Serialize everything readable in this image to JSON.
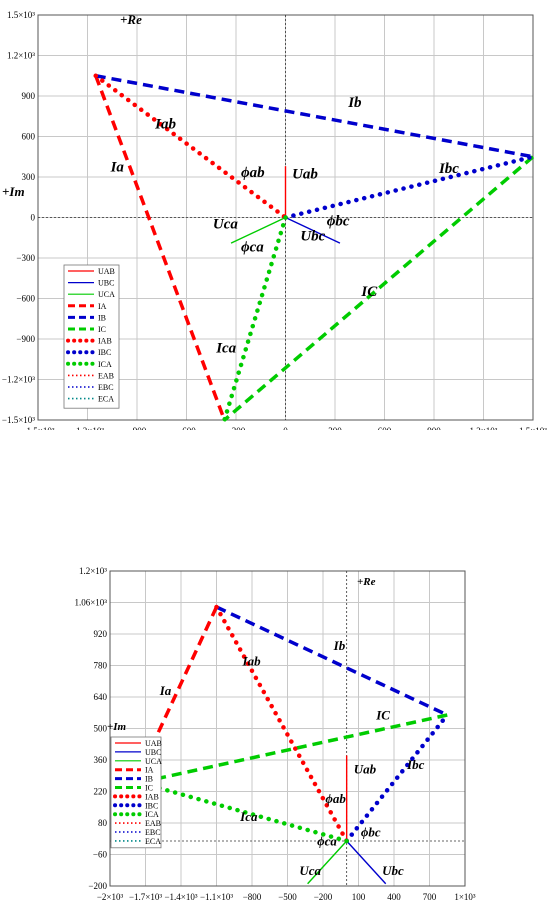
{
  "chart_data": [
    {
      "type": "line",
      "title": "",
      "xlim": [
        -1500,
        1500
      ],
      "ylim": [
        -1500,
        1500
      ],
      "x_ticks": [
        "−1.5×10³",
        "−1.2×10³",
        "−900",
        "−600",
        "−300",
        "0",
        "300",
        "600",
        "900",
        "1.2×10³",
        "1.5×10³"
      ],
      "y_ticks": [
        "1.5×10³",
        "1.2×10³",
        "900",
        "600",
        "300",
        "0",
        "−300",
        "−600",
        "−900",
        "−1.2×10³",
        "−1.5×10³"
      ],
      "axis_labels": {
        "re": "+Re",
        "im": "+Im"
      },
      "grid": true,
      "legend": {
        "placement": "bottom-left",
        "entries": [
          "UAB",
          "UBC",
          "UCA",
          "IA",
          "IB",
          "IC",
          "IAB",
          "IBC",
          "ICA",
          "EAB",
          "EBC",
          "ECA"
        ]
      },
      "series": [
        {
          "name": "UAB",
          "style": "solid-thin",
          "color": "#ff0000",
          "points": [
            [
              0,
              0
            ],
            [
              0,
              380
            ]
          ]
        },
        {
          "name": "UBC",
          "style": "solid-thin",
          "color": "#0000cc",
          "points": [
            [
              0,
              0
            ],
            [
              330,
              -190
            ]
          ]
        },
        {
          "name": "UCA",
          "style": "solid-thin",
          "color": "#00cc00",
          "points": [
            [
              0,
              0
            ],
            [
              -330,
              -190
            ]
          ]
        },
        {
          "name": "IA",
          "style": "dashed",
          "color": "#ff0000",
          "points": [
            [
              -1150,
              1050
            ],
            [
              -370,
              -1500
            ]
          ]
        },
        {
          "name": "IB",
          "style": "dashed",
          "color": "#0000cc",
          "points": [
            [
              -1150,
              1050
            ],
            [
              1500,
              450
            ]
          ]
        },
        {
          "name": "IC",
          "style": "dashed",
          "color": "#00cc00",
          "points": [
            [
              1500,
              450
            ],
            [
              -370,
              -1500
            ]
          ]
        },
        {
          "name": "IAB",
          "style": "dotted",
          "color": "#ff0000",
          "points": [
            [
              -1150,
              1050
            ],
            [
              0,
              0
            ]
          ]
        },
        {
          "name": "IBC",
          "style": "dotted",
          "color": "#0000cc",
          "points": [
            [
              0,
              0
            ],
            [
              1500,
              450
            ]
          ]
        },
        {
          "name": "ICA",
          "style": "dotted",
          "color": "#00cc00",
          "points": [
            [
              0,
              0
            ],
            [
              -370,
              -1500
            ]
          ]
        }
      ],
      "annotations": [
        {
          "text": "Ib",
          "x": 380,
          "y": 820
        },
        {
          "text": "Ia",
          "x": -1060,
          "y": 340
        },
        {
          "text": "Iab",
          "x": -790,
          "y": 660
        },
        {
          "text": "Ibc",
          "x": 930,
          "y": 330
        },
        {
          "text": "IC",
          "x": 460,
          "y": -580
        },
        {
          "text": "Ica",
          "x": -420,
          "y": -1000
        },
        {
          "text": "Uab",
          "x": 40,
          "y": 290
        },
        {
          "text": "Uca",
          "x": -440,
          "y": -80
        },
        {
          "text": "Ubc",
          "x": 90,
          "y": -170
        },
        {
          "text": "ϕab",
          "x": -270,
          "y": 300
        },
        {
          "text": "ϕbc",
          "x": 250,
          "y": -60
        },
        {
          "text": "ϕca",
          "x": -270,
          "y": -250
        }
      ]
    },
    {
      "type": "line",
      "title": "",
      "xlim": [
        -2000,
        1000
      ],
      "ylim": [
        -200,
        1200
      ],
      "x_ticks": [
        "−2×10³",
        "−1.7×10³",
        "−1.4×10³",
        "−1.1×10³",
        "−800",
        "−500",
        "−200",
        "100",
        "400",
        "700",
        "1×10³"
      ],
      "y_ticks": [
        "1.2×10³",
        "1.06×10³",
        "920",
        "780",
        "640",
        "500",
        "360",
        "220",
        "80",
        "−60",
        "−200"
      ],
      "axis_labels": {
        "re": "+Re",
        "im": "+Im"
      },
      "grid": true,
      "legend": {
        "placement": "bottom-left",
        "entries": [
          "UAB",
          "UBC",
          "UCA",
          "IA",
          "IB",
          "IC",
          "IAB",
          "IBC",
          "ICA",
          "EAB",
          "EBC",
          "ECA"
        ]
      },
      "series": [
        {
          "name": "UAB",
          "style": "solid-thin",
          "color": "#ff0000",
          "points": [
            [
              0,
              0
            ],
            [
              0,
              380
            ]
          ]
        },
        {
          "name": "UBC",
          "style": "solid-thin",
          "color": "#0000cc",
          "points": [
            [
              0,
              0
            ],
            [
              330,
              -190
            ]
          ]
        },
        {
          "name": "UCA",
          "style": "solid-thin",
          "color": "#00cc00",
          "points": [
            [
              0,
              0
            ],
            [
              -330,
              -190
            ]
          ]
        },
        {
          "name": "IA",
          "style": "dashed",
          "color": "#ff0000",
          "points": [
            [
              -1100,
              1040
            ],
            [
              -1700,
              360
            ]
          ]
        },
        {
          "name": "IB",
          "style": "dashed",
          "color": "#0000cc",
          "points": [
            [
              -1100,
              1040
            ],
            [
              850,
              560
            ]
          ]
        },
        {
          "name": "IC",
          "style": "dashed",
          "color": "#00cc00",
          "points": [
            [
              850,
              560
            ],
            [
              -1750,
              260
            ]
          ]
        },
        {
          "name": "IAB",
          "style": "dotted",
          "color": "#ff0000",
          "points": [
            [
              -1100,
              1040
            ],
            [
              0,
              0
            ]
          ]
        },
        {
          "name": "IBC",
          "style": "dotted",
          "color": "#0000cc",
          "points": [
            [
              0,
              0
            ],
            [
              850,
              560
            ]
          ]
        },
        {
          "name": "ICA",
          "style": "dotted",
          "color": "#00cc00",
          "points": [
            [
              0,
              0
            ],
            [
              -1750,
              260
            ]
          ]
        }
      ],
      "annotations": [
        {
          "text": "Ib",
          "x": -110,
          "y": 850
        },
        {
          "text": "Ia",
          "x": -1580,
          "y": 650
        },
        {
          "text": "Iab",
          "x": -880,
          "y": 780
        },
        {
          "text": "Ibc",
          "x": 510,
          "y": 320
        },
        {
          "text": "IC",
          "x": 250,
          "y": 540
        },
        {
          "text": "Ica",
          "x": -900,
          "y": 90
        },
        {
          "text": "Uab",
          "x": 60,
          "y": 300
        },
        {
          "text": "Uca",
          "x": -400,
          "y": -150
        },
        {
          "text": "Ubc",
          "x": 300,
          "y": -150
        },
        {
          "text": "ϕab",
          "x": -180,
          "y": 170
        },
        {
          "text": "ϕbc",
          "x": 120,
          "y": 20
        },
        {
          "text": "ϕca",
          "x": -250,
          "y": -20
        }
      ]
    }
  ]
}
